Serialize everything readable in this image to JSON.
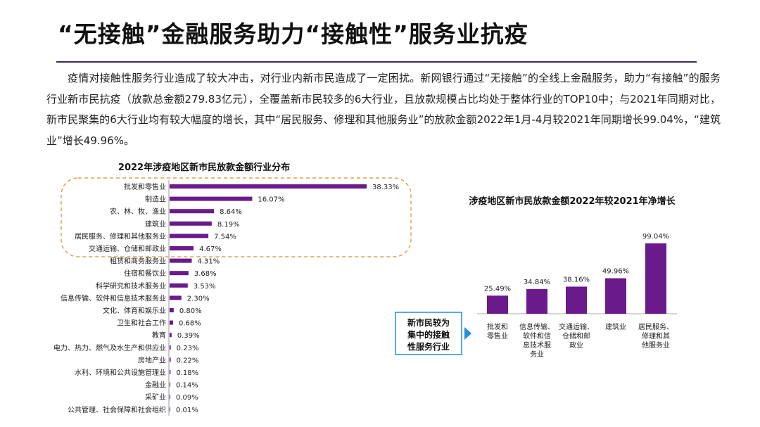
{
  "page": {
    "title": "“无接触”金融服务助力“接触性”服务业抗疫",
    "paragraph": "疫情对接触性服务行业造成了较大冲击，对行业内新市民造成了一定困扰。新网银行通过“无接触”的全线上金融服务，助力“有接触”的服务行业新市民抗疫（放款总金额279.83亿元），全覆盖新市民较多的6大行业，且放款规模占比均处于整体行业的TOP10中；与2021年同期对比，新市民聚集的6大行业均有较大幅度的增长，其中“居民服务、修理和其他服务业”的放款金额2022年1月-4月较2021年同期增长99.04%，“建筑业”增长49.96%。"
  },
  "colors": {
    "bar": "#6a1a8a",
    "highlight_border": "#e0a050",
    "callout_border": "#1f8fe0",
    "callout_arrow": "#1f8fe0"
  },
  "callout": {
    "lines": [
      "新市民较为",
      "集中的接触",
      "性服务行业"
    ]
  },
  "chart_data": [
    {
      "type": "bar",
      "orientation": "horizontal",
      "title": "2022年涉疫地区新市民放款金额行业分布",
      "categories": [
        "批发和零售业",
        "制造业",
        "农、林、牧、渔业",
        "建筑业",
        "居民服务、修理和其他服务业",
        "交通运输、仓储和邮政业",
        "租赁和商务服务业",
        "住宿和餐饮业",
        "科学研究和技术服务业",
        "信息传输、软件和信息技术服务业",
        "文化、体育和娱乐业",
        "卫生和社会工作",
        "教育",
        "电力、热力、燃气及水生产和供应业",
        "房地产业",
        "水利、环境和公共设施管理业",
        "金融业",
        "采矿业",
        "公共管理、社会保障和社会组织"
      ],
      "values": [
        38.33,
        16.07,
        8.64,
        8.19,
        7.54,
        4.67,
        4.31,
        3.68,
        3.53,
        2.3,
        0.8,
        0.68,
        0.39,
        0.23,
        0.22,
        0.18,
        0.14,
        0.09,
        0.01
      ],
      "labels": [
        "38.33%",
        "16.07%",
        "8.64%",
        "8.19%",
        "7.54%",
        "4.67%",
        "4.31%",
        "3.68%",
        "3.53%",
        "2.30%",
        "0.80%",
        "0.68%",
        "0.39%",
        "0.23%",
        "0.22%",
        "0.18%",
        "0.14%",
        "0.09%",
        "0.01%"
      ],
      "unit": "%",
      "highlighted_top": 6,
      "xlim": [
        0,
        40
      ]
    },
    {
      "type": "bar",
      "orientation": "vertical",
      "title": "涉疫地区新市民放款金额2022年较2021年净增长",
      "categories": [
        [
          "批发和",
          "零售业"
        ],
        [
          "信息传输、",
          "软件和信",
          "息技术服",
          "务业"
        ],
        [
          "交通运输、",
          "仓储和邮",
          "政业"
        ],
        [
          "建筑业"
        ],
        [
          "居民服务、",
          "修理和其",
          "他服务业"
        ]
      ],
      "values": [
        25.49,
        34.84,
        38.16,
        49.96,
        99.04
      ],
      "labels": [
        "25.49%",
        "34.84%",
        "38.16%",
        "49.96%",
        "99.04%"
      ],
      "unit": "%",
      "ylim": [
        0,
        100
      ]
    }
  ]
}
